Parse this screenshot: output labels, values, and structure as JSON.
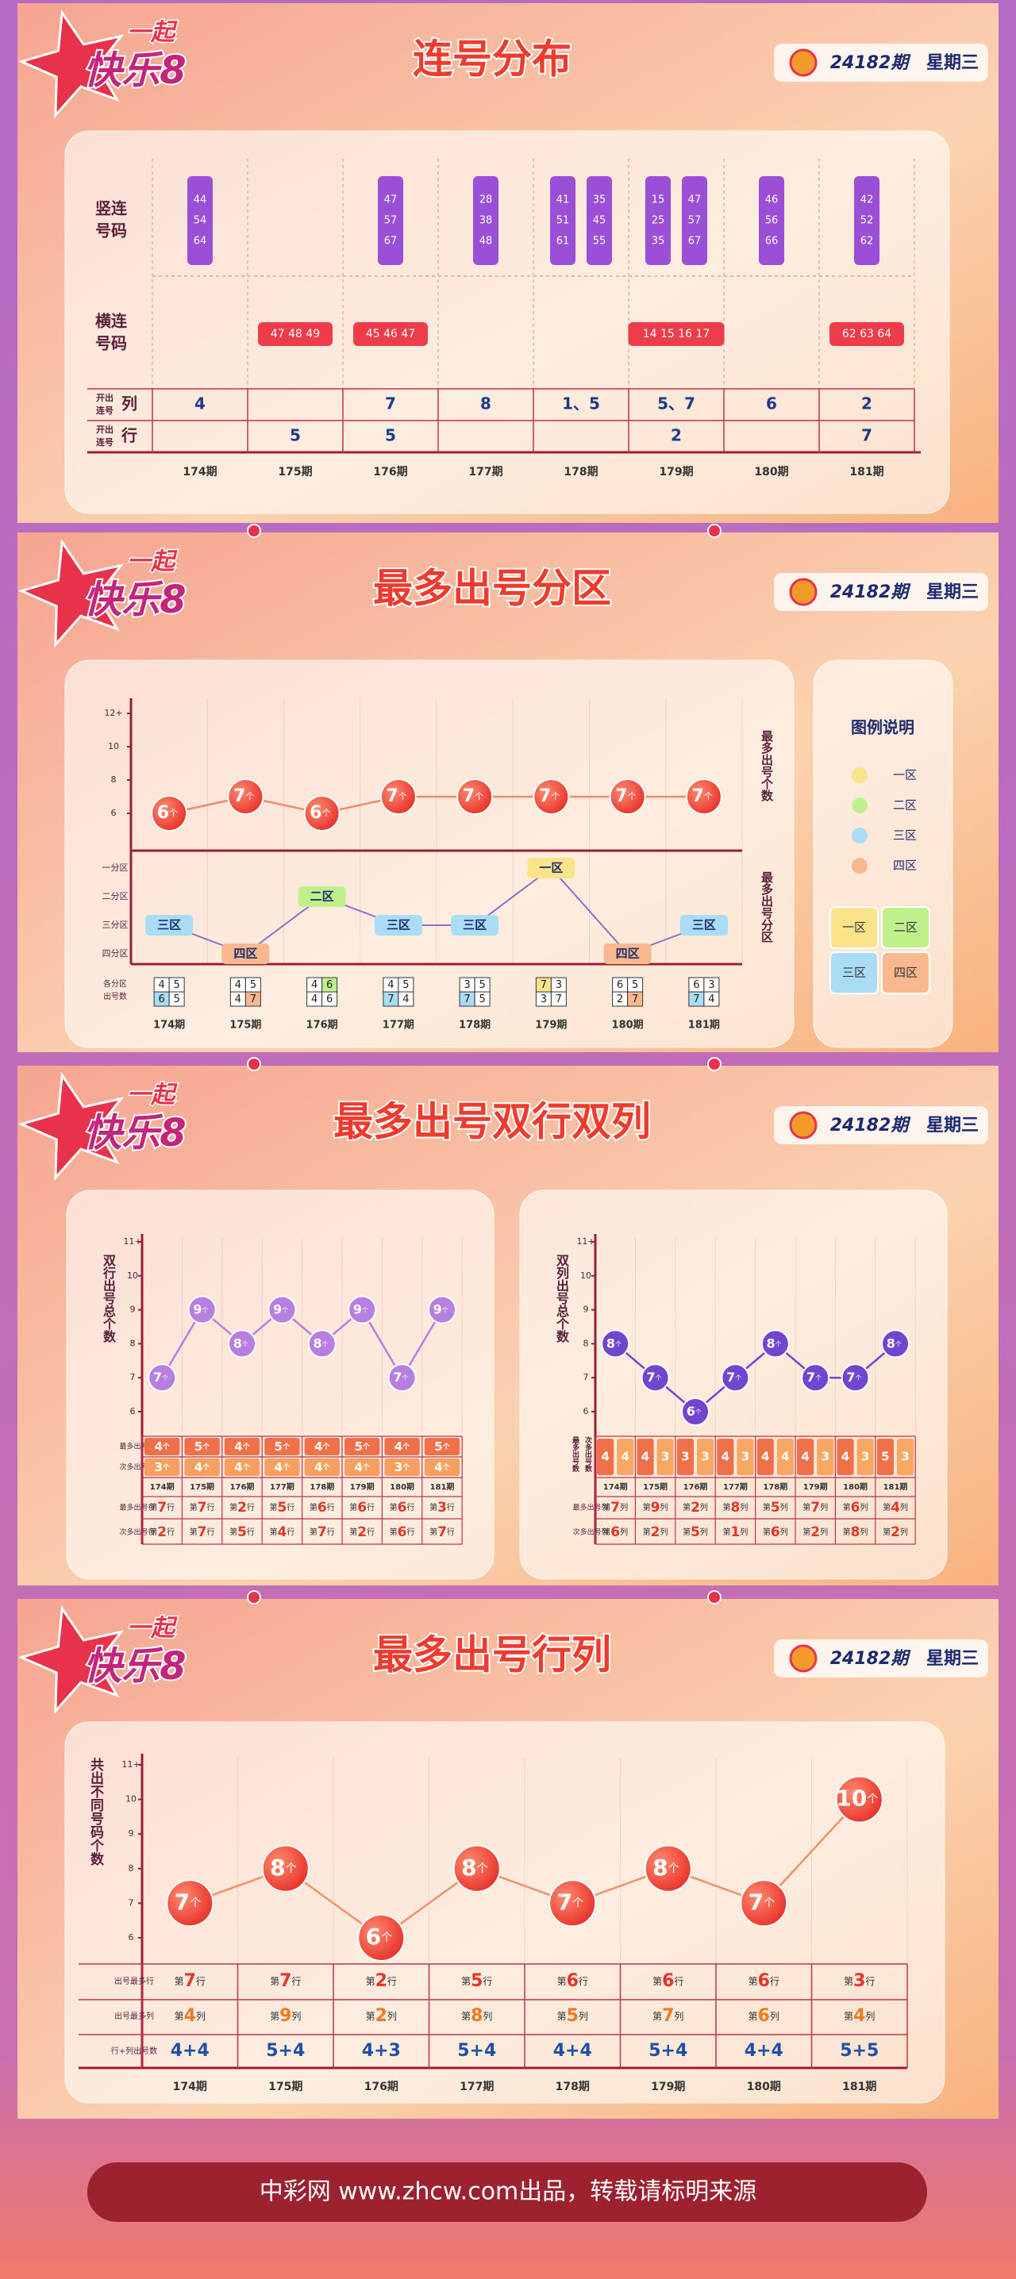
{
  "logo": {
    "top": "一起",
    "main": "快乐8"
  },
  "issue": "24182期",
  "weekday": "星期三",
  "footer": "中彩网 www.zhcw.com出品，转载请标明来源",
  "sections": [
    {
      "title": "连号分布"
    },
    {
      "title": "最多出号分区"
    },
    {
      "title": "最多出号双行双列"
    },
    {
      "title": "最多出号行列"
    }
  ],
  "consecutive": {
    "periods": [
      "174期",
      "175期",
      "176期",
      "177期",
      "178期",
      "179期",
      "180期",
      "181期"
    ],
    "vertical_label": [
      "竖连",
      "号码"
    ],
    "horizontal_label": [
      "横连",
      "号码"
    ],
    "col_label": {
      "small": [
        "开出",
        "连号"
      ],
      "main": "列"
    },
    "row_label": {
      "small": [
        "开出",
        "连号"
      ],
      "main": "行"
    },
    "vertical": [
      [
        [
          "44",
          "54",
          "64"
        ]
      ],
      [],
      [
        [
          "47",
          "57",
          "67"
        ]
      ],
      [
        [
          "28",
          "38",
          "48"
        ]
      ],
      [
        [
          "41",
          "51",
          "61"
        ],
        [
          "35",
          "45",
          "55"
        ]
      ],
      [
        [
          "15",
          "25",
          "35"
        ],
        [
          "47",
          "57",
          "67"
        ]
      ],
      [
        [
          "46",
          "56",
          "66"
        ]
      ],
      [
        [
          "42",
          "52",
          "62"
        ]
      ]
    ],
    "horizontal": [
      null,
      "47 48 49",
      "45 46 47",
      null,
      null,
      "14 15 16 17",
      null,
      "62 63 64"
    ],
    "cols": [
      4,
      null,
      7,
      8,
      "1、5",
      "5、7",
      6,
      2
    ],
    "rows": [
      null,
      5,
      5,
      null,
      null,
      2,
      null,
      7
    ]
  },
  "chart_data": [
    {
      "type": "line",
      "categories": [
        "174期",
        "175期",
        "176期",
        "177期",
        "178期",
        "179期",
        "180期",
        "181期"
      ],
      "values": [
        6,
        7,
        6,
        7,
        7,
        7,
        7,
        7
      ],
      "unit": "个",
      "ylim": [
        6,
        12
      ],
      "yticks": [
        6,
        8,
        10,
        {
          "value": 12,
          "label": "12+"
        }
      ],
      "axis_label": "最多出号个数",
      "color": "#ee4034"
    },
    {
      "type": "category-line",
      "categories": [
        "174期",
        "175期",
        "176期",
        "177期",
        "178期",
        "179期",
        "180期",
        "181期"
      ],
      "y_categories": [
        "一分区",
        "二分区",
        "三分区",
        "四分区"
      ],
      "values": [
        "三区",
        "四区",
        "二区",
        "三区",
        "三区",
        "一区",
        "四区",
        "三区"
      ],
      "axis_label": "最多出号分区",
      "legend_title": "图例说明",
      "legend": [
        {
          "name": "一区",
          "color": "#fbe38a"
        },
        {
          "name": "二区",
          "color": "#bff08c"
        },
        {
          "name": "三区",
          "color": "#a9dcf5"
        },
        {
          "name": "四区",
          "color": "#f9b88e"
        }
      ],
      "count_label": [
        "各分区",
        "出号数"
      ],
      "zone_counts": [
        [
          4,
          5,
          6,
          5
        ],
        [
          4,
          5,
          4,
          7
        ],
        [
          4,
          6,
          4,
          6
        ],
        [
          4,
          5,
          7,
          4
        ],
        [
          3,
          5,
          7,
          5
        ],
        [
          7,
          3,
          3,
          7
        ],
        [
          6,
          5,
          2,
          7
        ],
        [
          6,
          3,
          7,
          4
        ]
      ]
    },
    {
      "type": "line",
      "categories": [
        "174期",
        "175期",
        "176期",
        "177期",
        "178期",
        "179期",
        "180期",
        "181期"
      ],
      "values": [
        7,
        9,
        8,
        9,
        8,
        9,
        7,
        9
      ],
      "unit": "个",
      "ylim": [
        6,
        11
      ],
      "yticks": [
        6,
        7,
        8,
        9,
        10,
        {
          "value": 11,
          "label": "11+"
        }
      ],
      "axis_label": "双行出号总个数",
      "color": "#b77fe0",
      "table": {
        "rows": [
          {
            "label": "最多出号数",
            "values": [
              4,
              5,
              4,
              5,
              4,
              5,
              4,
              5
            ],
            "unit": "个"
          },
          {
            "label": "次多出号数",
            "values": [
              3,
              4,
              4,
              4,
              4,
              4,
              3,
              4
            ],
            "unit": "个"
          },
          {
            "label": "最多出号行",
            "prefix": "第",
            "values": [
              7,
              7,
              2,
              5,
              6,
              6,
              6,
              3
            ],
            "suffix": "行"
          },
          {
            "label": "次多出号行",
            "prefix": "第",
            "values": [
              2,
              7,
              5,
              4,
              7,
              2,
              6,
              7
            ],
            "suffix": "行"
          }
        ]
      }
    },
    {
      "type": "line",
      "categories": [
        "174期",
        "175期",
        "176期",
        "177期",
        "178期",
        "179期",
        "180期",
        "181期"
      ],
      "values": [
        8,
        7,
        6,
        7,
        8,
        7,
        7,
        8
      ],
      "unit": "个",
      "ylim": [
        6,
        11
      ],
      "yticks": [
        6,
        7,
        8,
        9,
        10,
        {
          "value": 11,
          "label": "11+"
        }
      ],
      "axis_label": "双列出号总个数",
      "color": "#7245cf",
      "table": {
        "rows": [
          {
            "label": "最多出号数",
            "values": [
              4,
              4,
              3,
              4,
              4,
              4,
              4,
              5
            ]
          },
          {
            "label": "次多出号数",
            "values": [
              4,
              3,
              3,
              3,
              4,
              3,
              3,
              3
            ]
          },
          {
            "label": "最多出号列",
            "prefix": "第",
            "values": [
              7,
              9,
              2,
              8,
              5,
              7,
              6,
              4
            ],
            "suffix": "列"
          },
          {
            "label": "次多出号列",
            "prefix": "第",
            "values": [
              6,
              2,
              5,
              1,
              6,
              2,
              8,
              2
            ],
            "suffix": "列"
          }
        ]
      }
    },
    {
      "type": "line",
      "categories": [
        "174期",
        "175期",
        "176期",
        "177期",
        "178期",
        "179期",
        "180期",
        "181期"
      ],
      "values": [
        7,
        8,
        6,
        8,
        7,
        8,
        7,
        10
      ],
      "unit": "个",
      "ylim": [
        6,
        11
      ],
      "yticks": [
        6,
        7,
        8,
        9,
        10,
        {
          "value": 11,
          "label": "11+"
        }
      ],
      "axis_label": "共出不同号码个数",
      "color": "#f0503a",
      "table": {
        "rows": [
          {
            "label": "出号最多行",
            "prefix": "第",
            "values": [
              7,
              7,
              2,
              5,
              6,
              6,
              6,
              3
            ],
            "suffix": "行",
            "color": "#e8332a"
          },
          {
            "label": "出号最多列",
            "prefix": "第",
            "values": [
              4,
              9,
              2,
              8,
              5,
              7,
              6,
              4
            ],
            "suffix": "列",
            "color": "#f07a1c"
          },
          {
            "label": "行+列出号数",
            "values": [
              "4+4",
              "5+4",
              "4+3",
              "5+4",
              "4+4",
              "5+4",
              "4+4",
              "5+5"
            ],
            "color": "#1f4fa8"
          }
        ]
      }
    }
  ]
}
